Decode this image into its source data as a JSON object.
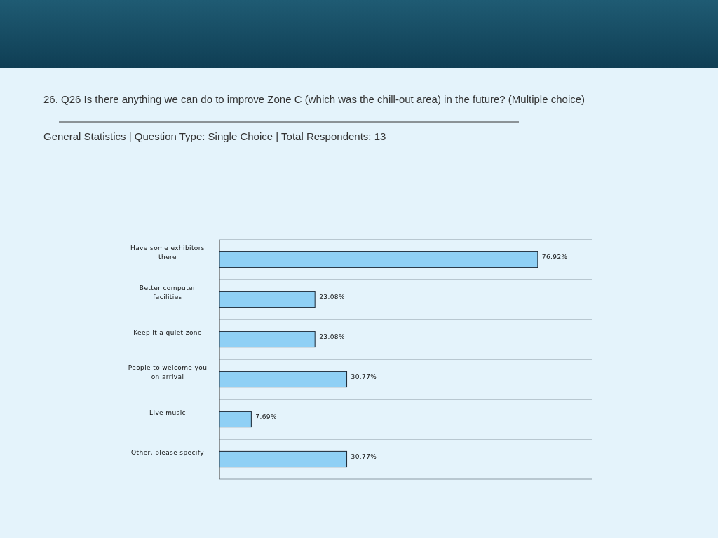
{
  "chart_data": {
    "type": "bar",
    "orientation": "horizontal",
    "title": "26. Q26 Is there anything we can do to improve Zone C (which was the chill-out area) in the future? (Multiple choice)",
    "subtitle": "General Statistics | Question Type: Single Choice | Total Respondents: 13",
    "categories": [
      "Have some exhibitors there",
      "Better computer facilities",
      "Keep it a quiet zone",
      "People to welcome you on arrival",
      "Live music",
      "Other, please specify"
    ],
    "values": [
      76.92,
      23.08,
      23.08,
      30.77,
      7.69,
      30.77
    ],
    "value_labels": [
      "76.92%",
      "23.08%",
      "23.08%",
      "30.77%",
      "7.69%",
      "30.77%"
    ],
    "color": "#8fd0f5",
    "xlim": [
      0,
      90
    ],
    "tick_labels": "y",
    "grid": "y"
  }
}
